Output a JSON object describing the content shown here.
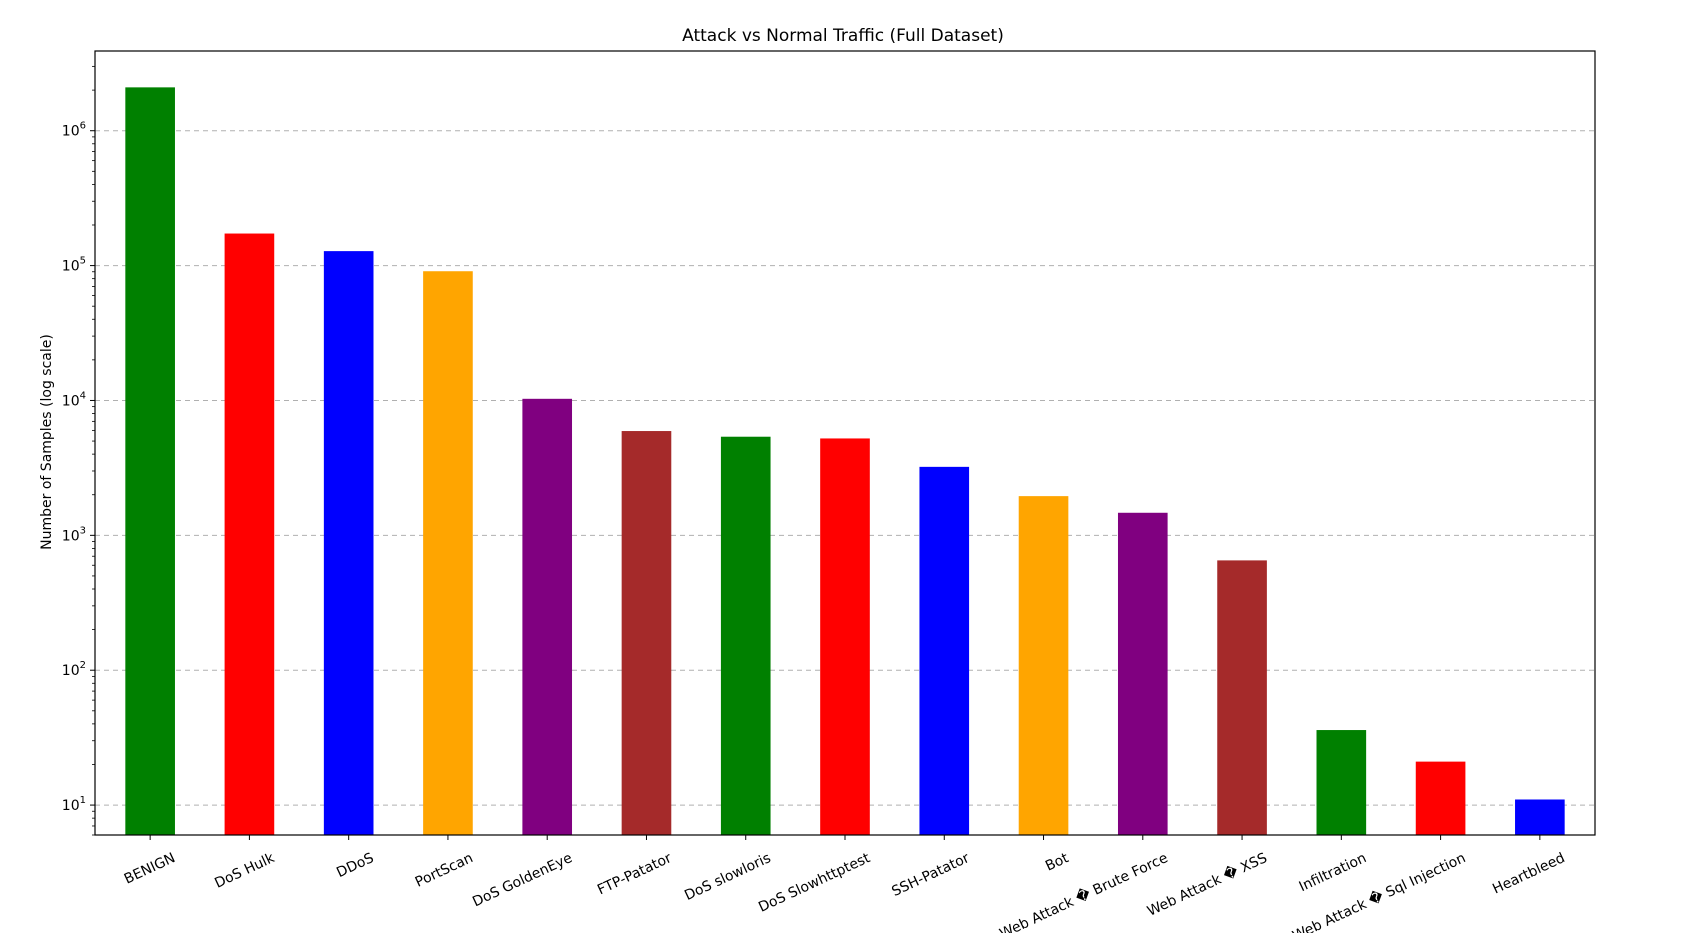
{
  "chart_data": {
    "type": "bar",
    "title": "Attack vs Normal Traffic (Full Dataset)",
    "xlabel": "",
    "ylabel": "Number of Samples (log scale)",
    "yscale": "log",
    "ylim": [
      6,
      3900000
    ],
    "grid": "y-dashed",
    "categories": [
      "BENIGN",
      "DoS Hulk",
      "DDoS",
      "PortScan",
      "DoS GoldenEye",
      "FTP-Patator",
      "DoS slowloris",
      "DoS Slowhttptest",
      "SSH-Patator",
      "Bot",
      "Web Attack � Brute Force",
      "Web Attack � XSS",
      "Infiltration",
      "Web Attack � Sql Injection",
      "Heartbleed"
    ],
    "values": [
      2096484,
      172849,
      128016,
      90819,
      10286,
      5933,
      5385,
      5228,
      3219,
      1953,
      1470,
      652,
      36,
      21,
      11
    ],
    "colors": [
      "#008000",
      "#ff0000",
      "#0000ff",
      "#ffa500",
      "#800080",
      "#a52a2a",
      "#008000",
      "#ff0000",
      "#0000ff",
      "#ffa500",
      "#800080",
      "#a52a2a",
      "#008000",
      "#ff0000",
      "#0000ff"
    ],
    "yticks": [
      {
        "value": 10,
        "base": "10",
        "exp": "1"
      },
      {
        "value": 100,
        "base": "10",
        "exp": "2"
      },
      {
        "value": 1000,
        "base": "10",
        "exp": "3"
      },
      {
        "value": 10000,
        "base": "10",
        "exp": "4"
      },
      {
        "value": 100000,
        "base": "10",
        "exp": "5"
      },
      {
        "value": 1000000,
        "base": "10",
        "exp": "6"
      }
    ]
  }
}
